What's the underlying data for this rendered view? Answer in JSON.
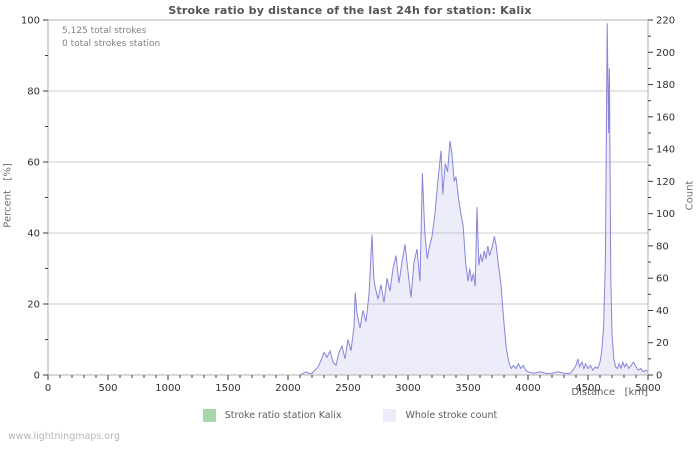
{
  "title": "Stroke ratio by distance of the last 24h for station: Kalix",
  "annotations": {
    "total_strokes": "5,125 total strokes",
    "total_strokes_station": "0 total strokes station"
  },
  "watermark": "www.lightningmaps.org",
  "axis_titles": {
    "x": "Distance   [km]",
    "left": "Percent   [%]",
    "right": "Count"
  },
  "legend": [
    {
      "label": "Stroke ratio station Kalix",
      "color": "#a9d6a9"
    },
    {
      "label": "Whole stroke count",
      "color": "#ebebfa"
    }
  ],
  "colors": {
    "count_line": "#8585dc",
    "count_fill": "rgba(150,150,220,0.17)",
    "ratio_line": "#a9d6a9",
    "grid": "#cccccc",
    "frame": "#b0b0b0",
    "tick": "#3a3a3a",
    "tick_label": "#303030"
  },
  "chart_data": {
    "type": "area",
    "title": "Stroke ratio by distance of the last 24h for station: Kalix",
    "xlabel": "Distance [km]",
    "ylabel_left": "Percent [%]",
    "ylabel_right": "Count",
    "xlim": [
      0,
      5000
    ],
    "ylim_left": [
      0,
      100
    ],
    "ylim_right": [
      0,
      220
    ],
    "x_major": 500,
    "x_minor": 100,
    "left_major": 20,
    "left_minor": 10,
    "right_major": 20,
    "right_minor": 10,
    "grid": "horizontal-at-left-axis-majors",
    "legend_position": "bottom-center",
    "series": [
      {
        "name": "Stroke ratio station Kalix",
        "axis": "left",
        "style": "line",
        "points": [
          [
            0,
            0
          ],
          [
            5000,
            0
          ]
        ]
      },
      {
        "name": "Whole stroke count",
        "axis": "right",
        "style": "area",
        "points": [
          [
            0,
            0
          ],
          [
            500,
            0
          ],
          [
            1000,
            0
          ],
          [
            1500,
            0
          ],
          [
            2000,
            0
          ],
          [
            2100,
            0
          ],
          [
            2125,
            1
          ],
          [
            2150,
            2
          ],
          [
            2175,
            1
          ],
          [
            2200,
            1
          ],
          [
            2225,
            3
          ],
          [
            2250,
            5
          ],
          [
            2275,
            9
          ],
          [
            2300,
            14
          ],
          [
            2325,
            11
          ],
          [
            2350,
            15
          ],
          [
            2375,
            8
          ],
          [
            2400,
            6
          ],
          [
            2425,
            14
          ],
          [
            2450,
            18
          ],
          [
            2475,
            10
          ],
          [
            2500,
            22
          ],
          [
            2525,
            15
          ],
          [
            2550,
            30
          ],
          [
            2560,
            51
          ],
          [
            2575,
            38
          ],
          [
            2600,
            29
          ],
          [
            2625,
            40
          ],
          [
            2650,
            33
          ],
          [
            2675,
            50
          ],
          [
            2700,
            87
          ],
          [
            2715,
            60
          ],
          [
            2725,
            55
          ],
          [
            2750,
            47
          ],
          [
            2775,
            56
          ],
          [
            2800,
            45
          ],
          [
            2825,
            60
          ],
          [
            2850,
            52
          ],
          [
            2875,
            66
          ],
          [
            2900,
            74
          ],
          [
            2925,
            57
          ],
          [
            2950,
            70
          ],
          [
            2975,
            81
          ],
          [
            3000,
            64
          ],
          [
            3025,
            48
          ],
          [
            3050,
            70
          ],
          [
            3075,
            78
          ],
          [
            3100,
            58
          ],
          [
            3120,
            125
          ],
          [
            3140,
            88
          ],
          [
            3160,
            72
          ],
          [
            3180,
            80
          ],
          [
            3200,
            86
          ],
          [
            3225,
            100
          ],
          [
            3250,
            121
          ],
          [
            3275,
            139
          ],
          [
            3290,
            112
          ],
          [
            3310,
            131
          ],
          [
            3330,
            126
          ],
          [
            3350,
            145
          ],
          [
            3365,
            138
          ],
          [
            3385,
            120
          ],
          [
            3400,
            123
          ],
          [
            3420,
            110
          ],
          [
            3440,
            100
          ],
          [
            3460,
            92
          ],
          [
            3480,
            70
          ],
          [
            3500,
            58
          ],
          [
            3515,
            66
          ],
          [
            3530,
            58
          ],
          [
            3545,
            63
          ],
          [
            3560,
            55
          ],
          [
            3575,
            104
          ],
          [
            3590,
            68
          ],
          [
            3605,
            75
          ],
          [
            3620,
            70
          ],
          [
            3635,
            77
          ],
          [
            3650,
            72
          ],
          [
            3665,
            80
          ],
          [
            3680,
            74
          ],
          [
            3700,
            79
          ],
          [
            3720,
            86
          ],
          [
            3735,
            80
          ],
          [
            3750,
            70
          ],
          [
            3775,
            56
          ],
          [
            3800,
            32
          ],
          [
            3820,
            16
          ],
          [
            3840,
            8
          ],
          [
            3860,
            4
          ],
          [
            3880,
            6
          ],
          [
            3900,
            4
          ],
          [
            3920,
            7
          ],
          [
            3940,
            4
          ],
          [
            3960,
            6
          ],
          [
            3980,
            3
          ],
          [
            4000,
            2
          ],
          [
            4050,
            1
          ],
          [
            4100,
            2
          ],
          [
            4150,
            1
          ],
          [
            4200,
            1
          ],
          [
            4250,
            2
          ],
          [
            4300,
            1
          ],
          [
            4350,
            1
          ],
          [
            4375,
            3
          ],
          [
            4400,
            6
          ],
          [
            4415,
            10
          ],
          [
            4430,
            5
          ],
          [
            4450,
            8
          ],
          [
            4465,
            4
          ],
          [
            4480,
            7
          ],
          [
            4500,
            4
          ],
          [
            4520,
            6
          ],
          [
            4540,
            3
          ],
          [
            4560,
            5
          ],
          [
            4580,
            4
          ],
          [
            4600,
            8
          ],
          [
            4615,
            15
          ],
          [
            4630,
            30
          ],
          [
            4645,
            70
          ],
          [
            4660,
            218
          ],
          [
            4672,
            150
          ],
          [
            4678,
            190
          ],
          [
            4690,
            60
          ],
          [
            4700,
            25
          ],
          [
            4715,
            10
          ],
          [
            4730,
            5
          ],
          [
            4745,
            4
          ],
          [
            4760,
            7
          ],
          [
            4775,
            4
          ],
          [
            4790,
            8
          ],
          [
            4805,
            5
          ],
          [
            4820,
            7
          ],
          [
            4840,
            4
          ],
          [
            4860,
            6
          ],
          [
            4880,
            8
          ],
          [
            4900,
            5
          ],
          [
            4920,
            3
          ],
          [
            4940,
            4
          ],
          [
            4960,
            2
          ],
          [
            4980,
            3
          ],
          [
            5000,
            2
          ]
        ]
      }
    ]
  }
}
